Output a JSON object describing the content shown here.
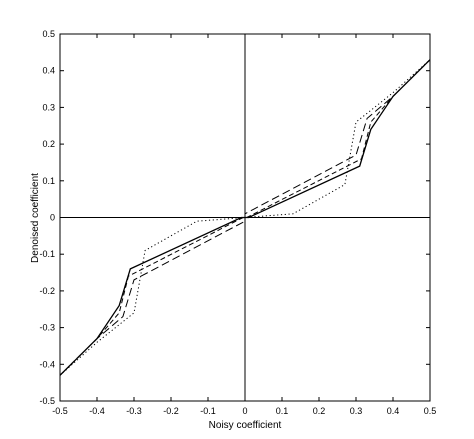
{
  "chart_data": {
    "type": "line",
    "title": "",
    "xlabel": "Noisy coefficient",
    "ylabel": "Denoised  coefficient",
    "xlim": [
      -0.5,
      0.5
    ],
    "ylim": [
      -0.5,
      0.5
    ],
    "xticks": [
      "-0.5",
      "-0.4",
      "-0.3",
      "-0.2",
      "-0.1",
      "0",
      "0.1",
      "0.2",
      "0.3",
      "0.4",
      "0.5"
    ],
    "yticks": [
      "0.5",
      "0.4",
      "0.3",
      "0.2",
      "0.1",
      "0",
      "-0.1",
      "-0.2",
      "-0.3",
      "-0.4",
      "-0.5"
    ],
    "grid": false,
    "zero_lines": true,
    "series": [
      {
        "style": "solid",
        "points": [
          [
            -0.5,
            -0.43
          ],
          [
            -0.4,
            -0.33
          ],
          [
            -0.34,
            -0.24
          ],
          [
            -0.31,
            -0.14
          ],
          [
            -0.01,
            0.0
          ],
          [
            0.01,
            0.0
          ],
          [
            0.31,
            0.14
          ],
          [
            0.34,
            0.24
          ],
          [
            0.4,
            0.33
          ],
          [
            0.5,
            0.43
          ]
        ]
      },
      {
        "style": "dash",
        "points": [
          [
            -0.5,
            -0.43
          ],
          [
            -0.4,
            -0.33
          ],
          [
            -0.34,
            -0.26
          ],
          [
            -0.315,
            -0.16
          ],
          [
            -0.005,
            0.0
          ],
          [
            0.005,
            0.0
          ],
          [
            0.315,
            0.16
          ],
          [
            0.34,
            0.26
          ],
          [
            0.4,
            0.33
          ],
          [
            0.5,
            0.43
          ]
        ]
      },
      {
        "style": "longdash",
        "points": [
          [
            -0.5,
            -0.43
          ],
          [
            -0.4,
            -0.33
          ],
          [
            -0.33,
            -0.27
          ],
          [
            -0.3,
            -0.17
          ],
          [
            0.0,
            -0.01
          ],
          [
            0.0,
            0.01
          ],
          [
            0.3,
            0.17
          ],
          [
            0.33,
            0.27
          ],
          [
            0.4,
            0.33
          ],
          [
            0.5,
            0.43
          ]
        ]
      },
      {
        "style": "dot",
        "points": [
          [
            -0.5,
            -0.43
          ],
          [
            -0.4,
            -0.34
          ],
          [
            -0.3,
            -0.26
          ],
          [
            -0.27,
            -0.09
          ],
          [
            -0.13,
            -0.01
          ],
          [
            0.13,
            0.01
          ],
          [
            0.27,
            0.09
          ],
          [
            0.3,
            0.26
          ],
          [
            0.4,
            0.34
          ],
          [
            0.5,
            0.43
          ]
        ]
      }
    ]
  }
}
